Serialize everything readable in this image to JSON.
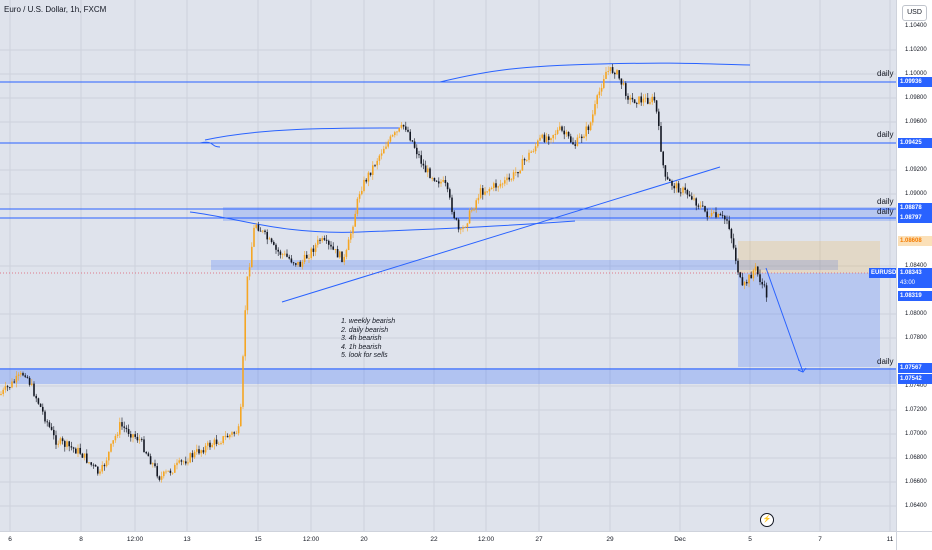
{
  "header": {
    "symbol_title": "Euro / U.S. Dollar, 1h, FXCM"
  },
  "price_scale": {
    "currency_button": "USD",
    "ticks": [
      "1.10400",
      "1.10200",
      "1.10000",
      "1.09800",
      "1.09600",
      "1.09200",
      "1.09000",
      "1.08400",
      "1.08000",
      "1.07800",
      "1.07400",
      "1.07200",
      "1.07000",
      "1.06800",
      "1.06600",
      "1.06400"
    ],
    "labels": {
      "level_09936": "1.09936",
      "level_09425": "1.09425",
      "level_08878": "1.08878",
      "level_08797": "1.08797",
      "target_08608": "1.08608",
      "current_price": "1.08343",
      "countdown": "43:00",
      "level_08319": "1.08319",
      "level_07567": "1.07567",
      "level_07542": "1.07542"
    }
  },
  "symbol_badge": "EURUSD",
  "time_axis": {
    "labels": [
      "6",
      "8",
      "12:00",
      "13",
      "15",
      "12:00",
      "20",
      "22",
      "12:00",
      "27",
      "29",
      "Dec",
      "5",
      "7",
      "11"
    ]
  },
  "drawings": {
    "level_labels": {
      "d1": "daily",
      "d2": "daily",
      "d3": "daily",
      "d4": "daily",
      "d5": "daily"
    },
    "notes": [
      "1. weekly bearish",
      "2. daily bearish",
      "3. 4h bearish",
      "4. 1h bearish",
      "5. look for sells"
    ]
  },
  "icons": {
    "alert": "lightning-icon"
  },
  "colors": {
    "up": "#f5a623",
    "down": "#131722",
    "line": "#2962ff",
    "zone": "#8fa6e0",
    "bg": "#dfe3ec",
    "accent": "#2962ff"
  }
}
